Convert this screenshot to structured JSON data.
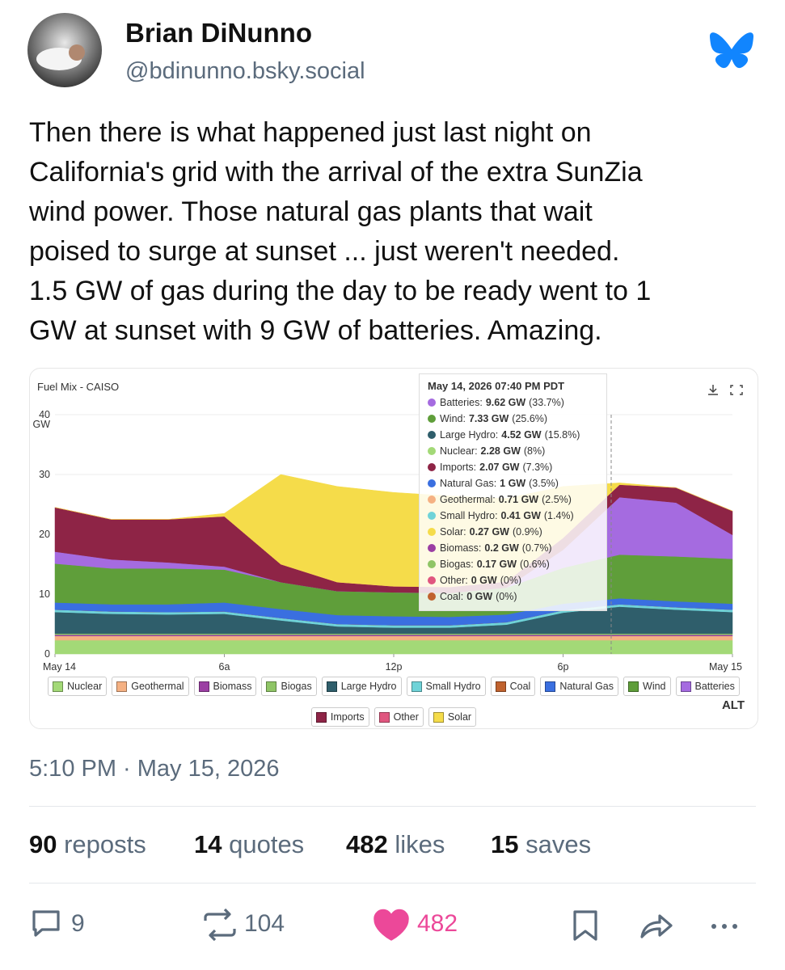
{
  "author": {
    "name": "Brian DiNunno",
    "handle": "@bdinunno.bsky.social"
  },
  "post": {
    "text_lines": [
      "Then there is what happened just last night on",
      "California's grid with the arrival of the extra SunZia",
      "wind power. Those natural gas plants that wait",
      "poised to surge at sunset ... just weren't needed.",
      "1.5 GW of gas during the day to be ready went to 1",
      "GW at sunset with 9 GW of batteries. Amazing."
    ],
    "timestamp": "5:10 PM · May 15, 2026",
    "alt_badge": "ALT"
  },
  "stats": [
    {
      "count": 90,
      "label": "reposts"
    },
    {
      "count": 14,
      "label": "quotes"
    },
    {
      "count": 482,
      "label": "likes"
    },
    {
      "count": 15,
      "label": "saves"
    }
  ],
  "actions": {
    "replies": 9,
    "reposts": 104,
    "likes": 482
  },
  "chart_data": {
    "type": "area",
    "stacked": true,
    "title": "Fuel Mix - CAISO",
    "y_unit": "GW",
    "x": [
      0,
      2,
      4,
      6,
      8,
      10,
      12,
      14,
      16,
      18,
      20,
      22,
      24
    ],
    "xlim": [
      0,
      24
    ],
    "xticks": [
      {
        "value": 0,
        "label": "May 14"
      },
      {
        "value": 6,
        "label": "6a"
      },
      {
        "value": 12,
        "label": "12p"
      },
      {
        "value": 18,
        "label": "6p"
      },
      {
        "value": 24,
        "label": "May 15"
      }
    ],
    "ylim": [
      0,
      40
    ],
    "yticks": [
      0,
      10,
      20,
      30,
      40
    ],
    "series": [
      {
        "name": "Nuclear",
        "color": "#a3d977",
        "values": [
          2.3,
          2.3,
          2.3,
          2.3,
          2.3,
          2.3,
          2.3,
          2.3,
          2.3,
          2.3,
          2.3,
          2.3,
          2.3
        ]
      },
      {
        "name": "Geothermal",
        "color": "#f5b183",
        "values": [
          0.7,
          0.7,
          0.7,
          0.7,
          0.7,
          0.7,
          0.7,
          0.7,
          0.7,
          0.7,
          0.7,
          0.7,
          0.7
        ]
      },
      {
        "name": "Biomass",
        "color": "#9b3ea3",
        "values": [
          0.2,
          0.2,
          0.2,
          0.2,
          0.2,
          0.2,
          0.2,
          0.2,
          0.2,
          0.2,
          0.2,
          0.2,
          0.2
        ]
      },
      {
        "name": "Biogas",
        "color": "#8fc566",
        "values": [
          0.2,
          0.2,
          0.2,
          0.2,
          0.2,
          0.2,
          0.2,
          0.2,
          0.2,
          0.2,
          0.2,
          0.2,
          0.2
        ]
      },
      {
        "name": "Large Hydro",
        "color": "#2f5e6b",
        "values": [
          3.6,
          3.3,
          3.2,
          3.3,
          2.2,
          1.2,
          1.0,
          1.0,
          1.5,
          3.5,
          4.5,
          4.0,
          3.6
        ]
      },
      {
        "name": "Small Hydro",
        "color": "#6fd3d8",
        "values": [
          0.4,
          0.4,
          0.4,
          0.4,
          0.4,
          0.4,
          0.4,
          0.4,
          0.4,
          0.4,
          0.4,
          0.4,
          0.4
        ]
      },
      {
        "name": "Coal",
        "color": "#c0622e",
        "values": [
          0,
          0,
          0,
          0,
          0,
          0,
          0,
          0,
          0,
          0,
          0,
          0,
          0
        ]
      },
      {
        "name": "Natural Gas",
        "color": "#3a6fe0",
        "values": [
          1.2,
          1.2,
          1.3,
          1.5,
          1.5,
          1.5,
          1.5,
          1.4,
          1.3,
          1.1,
          1.0,
          1.0,
          1.0
        ]
      },
      {
        "name": "Wind",
        "color": "#5f9e3a",
        "values": [
          6.5,
          6,
          6,
          5.5,
          4.5,
          4,
          4,
          4,
          4.5,
          6,
          7.3,
          7.5,
          7.5
        ]
      },
      {
        "name": "Batteries",
        "color": "#a56be0",
        "values": [
          2,
          1.5,
          1,
          0.5,
          0,
          0,
          0,
          0,
          0,
          3,
          9.6,
          9,
          4
        ]
      },
      {
        "name": "Imports",
        "color": "#8e2446",
        "values": [
          7.4,
          6.7,
          7.2,
          8.4,
          3,
          1.5,
          1,
          1,
          1,
          2,
          2.1,
          2.5,
          4
        ]
      },
      {
        "name": "Other",
        "color": "#e0567f",
        "values": [
          0,
          0,
          0,
          0,
          0,
          0,
          0,
          0,
          0,
          0,
          0,
          0,
          0
        ]
      },
      {
        "name": "Solar",
        "color": "#f5dc4a",
        "values": [
          0,
          0,
          0,
          0.5,
          15,
          16,
          15.7,
          15.2,
          13.9,
          8.6,
          0.3,
          0,
          0
        ]
      }
    ],
    "tooltip": {
      "title": "May 14, 2026 07:40 PM PDT",
      "items": [
        {
          "label": "Batteries:",
          "value": "9.62 GW",
          "share": "(33.7%)",
          "color": "#a56be0"
        },
        {
          "label": "Wind:",
          "value": "7.33 GW",
          "share": "(25.6%)",
          "color": "#5f9e3a"
        },
        {
          "label": "Large Hydro:",
          "value": "4.52 GW",
          "share": "(15.8%)",
          "color": "#2f5e6b"
        },
        {
          "label": "Nuclear:",
          "value": "2.28 GW",
          "share": "(8%)",
          "color": "#a3d977"
        },
        {
          "label": "Imports:",
          "value": "2.07 GW",
          "share": "(7.3%)",
          "color": "#8e2446"
        },
        {
          "label": "Natural Gas:",
          "value": "1 GW",
          "share": "(3.5%)",
          "color": "#3a6fe0"
        },
        {
          "label": "Geothermal:",
          "value": "0.71 GW",
          "share": "(2.5%)",
          "color": "#f5b183"
        },
        {
          "label": "Small Hydro:",
          "value": "0.41 GW",
          "share": "(1.4%)",
          "color": "#6fd3d8"
        },
        {
          "label": "Solar:",
          "value": "0.27 GW",
          "share": "(0.9%)",
          "color": "#f5dc4a"
        },
        {
          "label": "Biomass:",
          "value": "0.2 GW",
          "share": "(0.7%)",
          "color": "#9b3ea3"
        },
        {
          "label": "Biogas:",
          "value": "0.17 GW",
          "share": "(0.6%)",
          "color": "#8fc566"
        },
        {
          "label": "Other:",
          "value": "0 GW",
          "share": "(0%)",
          "color": "#e0567f"
        },
        {
          "label": "Coal:",
          "value": "0 GW",
          "share": "(0%)",
          "color": "#c0622e"
        }
      ]
    }
  }
}
